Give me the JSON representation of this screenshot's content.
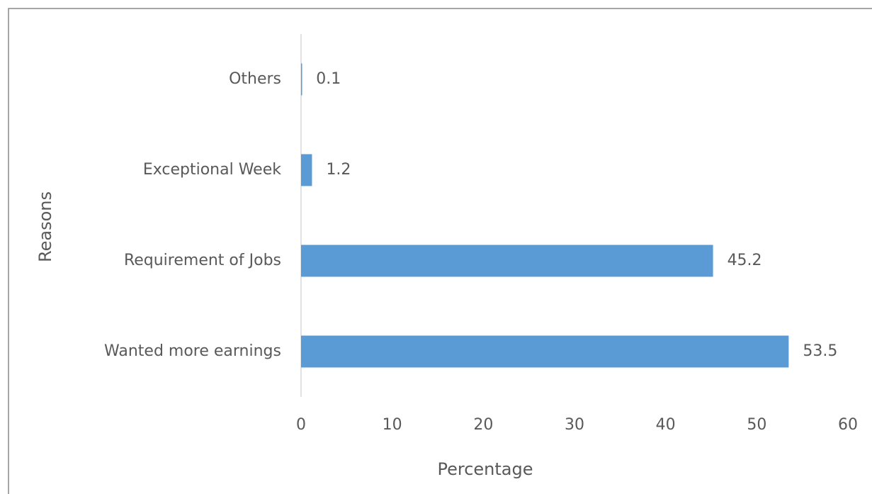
{
  "chart_data": {
    "type": "bar",
    "orientation": "horizontal",
    "categories": [
      "Others",
      "Exceptional Week",
      "Requirement of Jobs",
      "Wanted more earnings"
    ],
    "values": [
      0.1,
      1.2,
      45.2,
      53.5
    ],
    "color": "#5b9bd5",
    "xlabel": "Percentage",
    "ylabel": "Reasons",
    "xlim": [
      0,
      60
    ],
    "xticks": [
      0,
      10,
      20,
      30,
      40,
      50,
      60
    ],
    "grid": false
  }
}
